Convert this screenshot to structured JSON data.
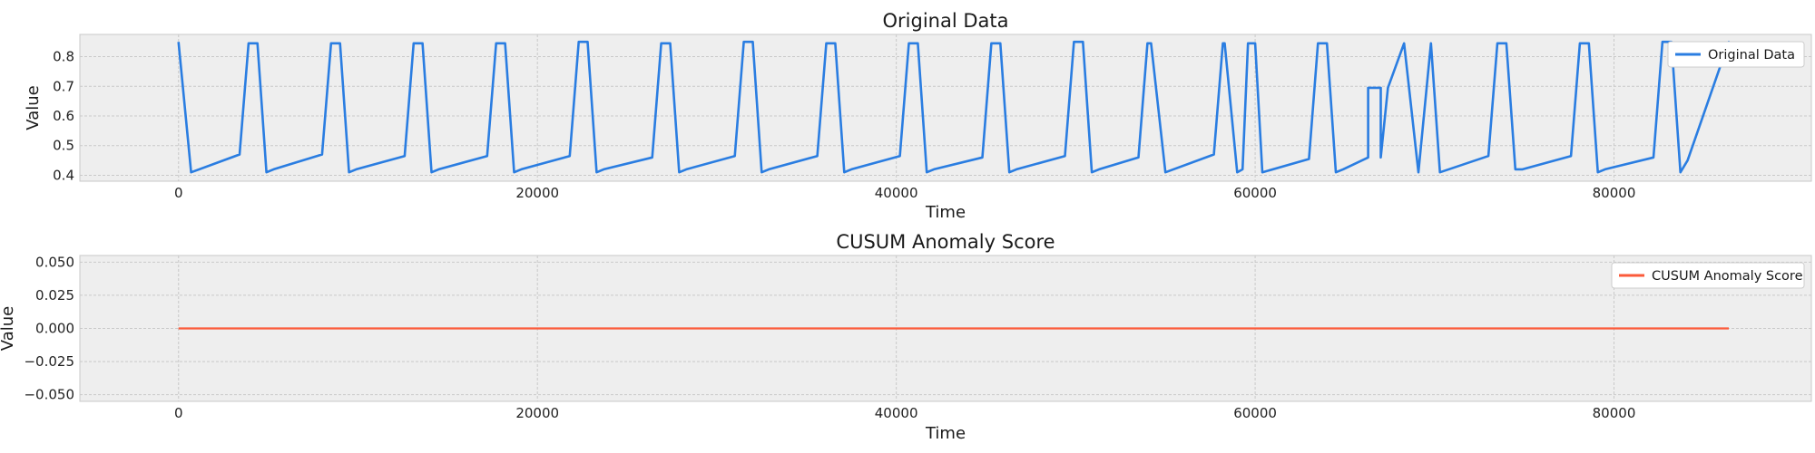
{
  "colors": {
    "original": "#2a7de1",
    "cusum": "#fb5a3a"
  },
  "chart_data": [
    {
      "type": "line",
      "title": "Original Data",
      "xlabel": "Time",
      "ylabel": "Value",
      "xlim": [
        -5500,
        91000
      ],
      "ylim": [
        0.38,
        0.875
      ],
      "xticks": [
        0,
        20000,
        40000,
        60000,
        80000
      ],
      "yticks": [
        0.4,
        0.5,
        0.6,
        0.7,
        0.8
      ],
      "ytick_labels": [
        "0.4",
        "0.5",
        "0.6",
        "0.7",
        "0.8"
      ],
      "grid": true,
      "legend": "top-right",
      "series": [
        {
          "name": "Original Data",
          "x": [
            0,
            700,
            3400,
            3900,
            4400,
            4900,
            5300,
            8000,
            8500,
            9000,
            9500,
            9900,
            12600,
            13100,
            13600,
            14100,
            14500,
            17200,
            17700,
            18200,
            18700,
            19100,
            21800,
            22300,
            22800,
            23300,
            23700,
            26400,
            26900,
            27400,
            27900,
            28300,
            31000,
            31500,
            32000,
            32500,
            32900,
            35600,
            36100,
            36600,
            37100,
            37500,
            40200,
            40700,
            41200,
            41700,
            42100,
            44800,
            45300,
            45800,
            46300,
            46700,
            49400,
            49900,
            50400,
            50900,
            51300,
            53500,
            54000,
            54200,
            55000,
            57700,
            58200,
            58300,
            59000,
            59300,
            59600,
            60000,
            60400,
            63000,
            63500,
            64000,
            64500,
            64900,
            66300,
            66300,
            67000,
            67000,
            67400,
            68300,
            69100,
            69800,
            70300,
            73000,
            73500,
            74000,
            74500,
            74900,
            77600,
            78100,
            78600,
            79100,
            79500,
            82200,
            82700,
            83200,
            83700,
            84100,
            86400,
            86700
          ],
          "y": [
            0.85,
            0.41,
            0.47,
            0.845,
            0.845,
            0.41,
            0.42,
            0.47,
            0.845,
            0.845,
            0.41,
            0.42,
            0.465,
            0.845,
            0.845,
            0.41,
            0.42,
            0.465,
            0.845,
            0.845,
            0.41,
            0.42,
            0.465,
            0.85,
            0.85,
            0.41,
            0.42,
            0.46,
            0.845,
            0.845,
            0.41,
            0.42,
            0.465,
            0.85,
            0.85,
            0.41,
            0.42,
            0.465,
            0.845,
            0.845,
            0.41,
            0.42,
            0.465,
            0.845,
            0.845,
            0.41,
            0.42,
            0.46,
            0.845,
            0.845,
            0.41,
            0.42,
            0.465,
            0.85,
            0.85,
            0.41,
            0.42,
            0.46,
            0.845,
            0.845,
            0.41,
            0.47,
            0.845,
            0.845,
            0.41,
            0.42,
            0.845,
            0.845,
            0.41,
            0.455,
            0.845,
            0.845,
            0.41,
            0.42,
            0.46,
            0.695,
            0.695,
            0.46,
            0.695,
            0.845,
            0.41,
            0.845,
            0.41,
            0.465,
            0.845,
            0.845,
            0.42,
            0.42,
            0.465,
            0.845,
            0.845,
            0.41,
            0.42,
            0.46,
            0.85,
            0.85,
            0.41,
            0.45,
            0.85,
            0.785
          ]
        }
      ]
    },
    {
      "type": "line",
      "title": "CUSUM Anomaly Score",
      "xlabel": "Time",
      "ylabel": "Value",
      "xlim": [
        -5500,
        91000
      ],
      "ylim": [
        -0.055,
        0.055
      ],
      "xticks": [
        0,
        20000,
        40000,
        60000,
        80000
      ],
      "yticks": [
        -0.05,
        -0.025,
        0,
        0.025,
        0.05
      ],
      "ytick_labels": [
        "−0.050",
        "−0.025",
        "0.000",
        "0.025",
        "0.050"
      ],
      "grid": true,
      "legend": "top-right",
      "series": [
        {
          "name": "CUSUM Anomaly Score",
          "x": [
            0,
            86400
          ],
          "y": [
            0,
            0
          ]
        }
      ]
    }
  ]
}
